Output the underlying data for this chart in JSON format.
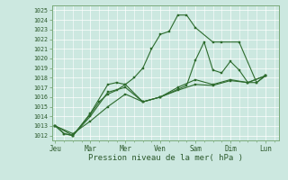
{
  "background_color": "#cce8e0",
  "grid_color": "#ffffff",
  "line_color": "#2d6b2d",
  "xlabel": "Pression niveau de la mer( hPa )",
  "ylim": [
    1011.5,
    1025.5
  ],
  "yticks": [
    1012,
    1013,
    1014,
    1015,
    1016,
    1017,
    1018,
    1019,
    1020,
    1021,
    1022,
    1023,
    1024,
    1025
  ],
  "day_labels": [
    "Jeu",
    "Mar",
    "Mer",
    "Ven",
    "Sam",
    "Dim",
    "Lun"
  ],
  "day_positions": [
    0,
    2,
    4,
    6,
    8,
    10,
    12
  ],
  "s1x": [
    0,
    0.5,
    1.0,
    2.0,
    3.0,
    3.5,
    4.0,
    4.5,
    5.0,
    5.5,
    6.0,
    6.5,
    7.0,
    7.5,
    8.0,
    9.0,
    9.5,
    10.5,
    11.5,
    12.0
  ],
  "s1y": [
    1013.0,
    1012.2,
    1012.0,
    1014.3,
    1017.3,
    1017.5,
    1017.3,
    1018.0,
    1019.0,
    1021.0,
    1022.5,
    1022.8,
    1024.5,
    1024.5,
    1023.2,
    1021.7,
    1021.7,
    1021.7,
    1017.5,
    1018.2
  ],
  "s2x": [
    0,
    0.5,
    1.0,
    2.0,
    2.5,
    3.0,
    3.5,
    4.0,
    5.0,
    6.0,
    7.0,
    7.5,
    8.0,
    8.5,
    9.0,
    9.5,
    10.0,
    10.5,
    11.0,
    11.5,
    12.0
  ],
  "s2y": [
    1013.0,
    1012.2,
    1012.0,
    1014.2,
    1015.5,
    1016.3,
    1016.7,
    1017.3,
    1015.5,
    1016.0,
    1016.8,
    1017.2,
    1019.8,
    1021.7,
    1018.8,
    1018.5,
    1019.7,
    1018.8,
    1017.5,
    1017.5,
    1018.2
  ],
  "s3x": [
    0,
    1.0,
    2.0,
    3.0,
    4.0,
    5.0,
    6.0,
    7.0,
    8.0,
    9.0,
    10.0,
    11.0,
    12.0
  ],
  "s3y": [
    1013.0,
    1012.0,
    1014.0,
    1016.5,
    1017.0,
    1015.5,
    1016.0,
    1017.0,
    1017.8,
    1017.3,
    1017.8,
    1017.5,
    1018.2
  ],
  "s4x": [
    0,
    1.0,
    2.0,
    3.0,
    4.0,
    5.0,
    6.0,
    7.0,
    8.0,
    9.0,
    10.0,
    11.0,
    12.0
  ],
  "s4y": [
    1013.0,
    1012.2,
    1013.5,
    1015.0,
    1016.3,
    1015.5,
    1016.0,
    1016.7,
    1017.3,
    1017.2,
    1017.7,
    1017.5,
    1018.2
  ]
}
